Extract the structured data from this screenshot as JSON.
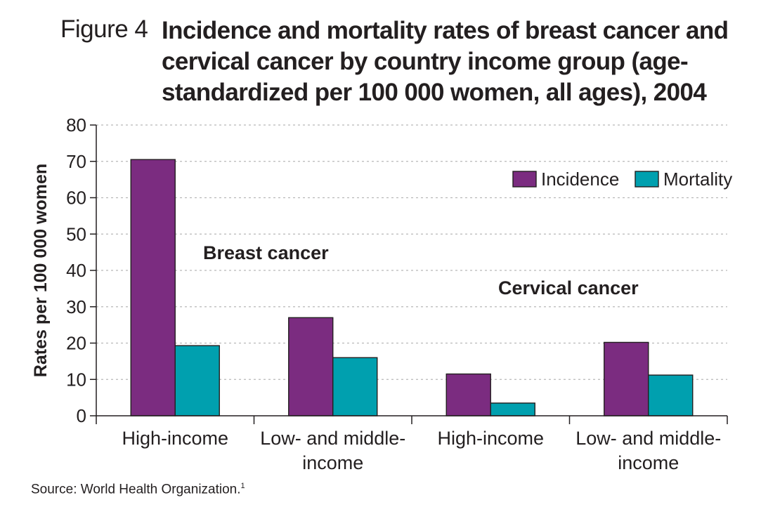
{
  "figure_label": "Figure 4",
  "title": "Incidence and mortality rates of breast cancer and cervical cancer by country income group (age-standardized per 100 000 women, all ages), 2004",
  "source": "Source: World Health Organization.",
  "source_superscript": "1",
  "chart_data": {
    "type": "bar",
    "ylabel": "Rates per 100 000 women",
    "xlabel": "",
    "ylim": [
      0,
      80
    ],
    "yticks": [
      0,
      10,
      20,
      30,
      40,
      50,
      60,
      70,
      80
    ],
    "grid": true,
    "legend_position": "top-right",
    "groups": [
      "Breast cancer",
      "Cervical cancer"
    ],
    "categories": [
      {
        "group": "Breast cancer",
        "label_lines": [
          "High-income"
        ]
      },
      {
        "group": "Breast cancer",
        "label_lines": [
          "Low- and middle-",
          "income"
        ]
      },
      {
        "group": "Cervical cancer",
        "label_lines": [
          "High-income"
        ]
      },
      {
        "group": "Cervical cancer",
        "label_lines": [
          "Low- and middle-",
          "income"
        ]
      }
    ],
    "series": [
      {
        "name": "Incidence",
        "color": "#7b2c80",
        "values": [
          70.5,
          27.0,
          11.5,
          20.2
        ]
      },
      {
        "name": "Mortality",
        "color": "#00a0af",
        "values": [
          19.3,
          16.0,
          3.5,
          11.2
        ]
      }
    ]
  }
}
